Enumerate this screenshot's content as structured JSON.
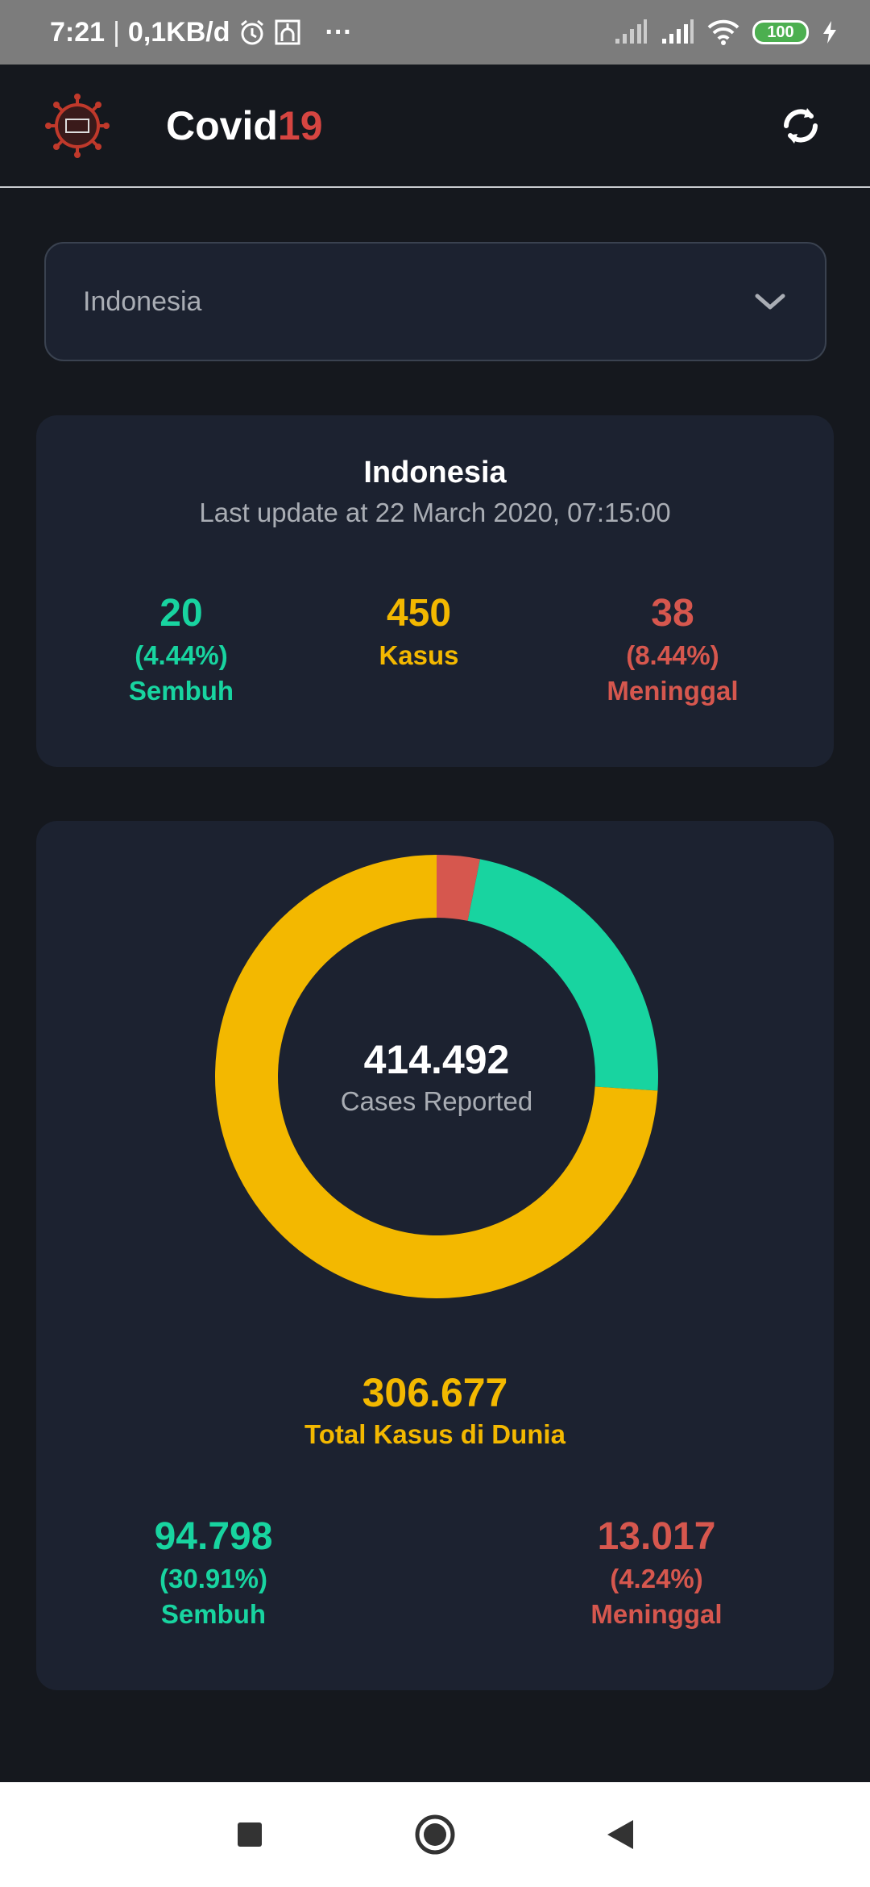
{
  "status_bar": {
    "time": "7:21",
    "separator": "|",
    "network_speed": "0,1KB/d",
    "more": "···",
    "battery": "100",
    "icons": [
      "alarm-icon",
      "mosque-icon",
      "signal-icon",
      "signal-icon",
      "wifi-icon",
      "battery-icon",
      "charging-icon"
    ]
  },
  "app_bar": {
    "title_main": "Covid",
    "title_accent": "19",
    "logo_icon": "virus-logo",
    "refresh_icon": "refresh-icon"
  },
  "country_select": {
    "value": "Indonesia",
    "icon": "chevron-down-icon"
  },
  "country_card": {
    "name": "Indonesia",
    "last_update": "Last update at 22 March 2020, 07:15:00",
    "recovered": {
      "value": "20",
      "percent": "(4.44%)",
      "label": "Sembuh"
    },
    "cases": {
      "value": "450",
      "label": "Kasus"
    },
    "deaths": {
      "value": "38",
      "percent": "(8.44%)",
      "label": "Meninggal"
    }
  },
  "world_card": {
    "total_reported": "414.492",
    "total_reported_caption": "Cases Reported",
    "total_world": "306.677",
    "total_world_label": "Total Kasus di Dunia",
    "recovered": {
      "value": "94.798",
      "percent": "(30.91%)",
      "label": "Sembuh"
    },
    "deaths": {
      "value": "13.017",
      "percent": "(4.24%)",
      "label": "Meninggal"
    }
  },
  "chart_data": {
    "type": "pie",
    "categories": [
      "Meninggal",
      "Sembuh",
      "Kasus"
    ],
    "values": [
      13017,
      94798,
      306677
    ],
    "colors": [
      "#d6574e",
      "#18d4a0",
      "#f3b800"
    ],
    "title": "",
    "hole": true
  },
  "colors": {
    "background": "#15181e",
    "card": "#1c2230",
    "green": "#18d4a0",
    "yellow": "#f3b800",
    "red": "#d6574e",
    "accent": "#d64541"
  },
  "nav_bar": {
    "icons": [
      "recents-icon",
      "home-icon",
      "back-icon"
    ]
  }
}
